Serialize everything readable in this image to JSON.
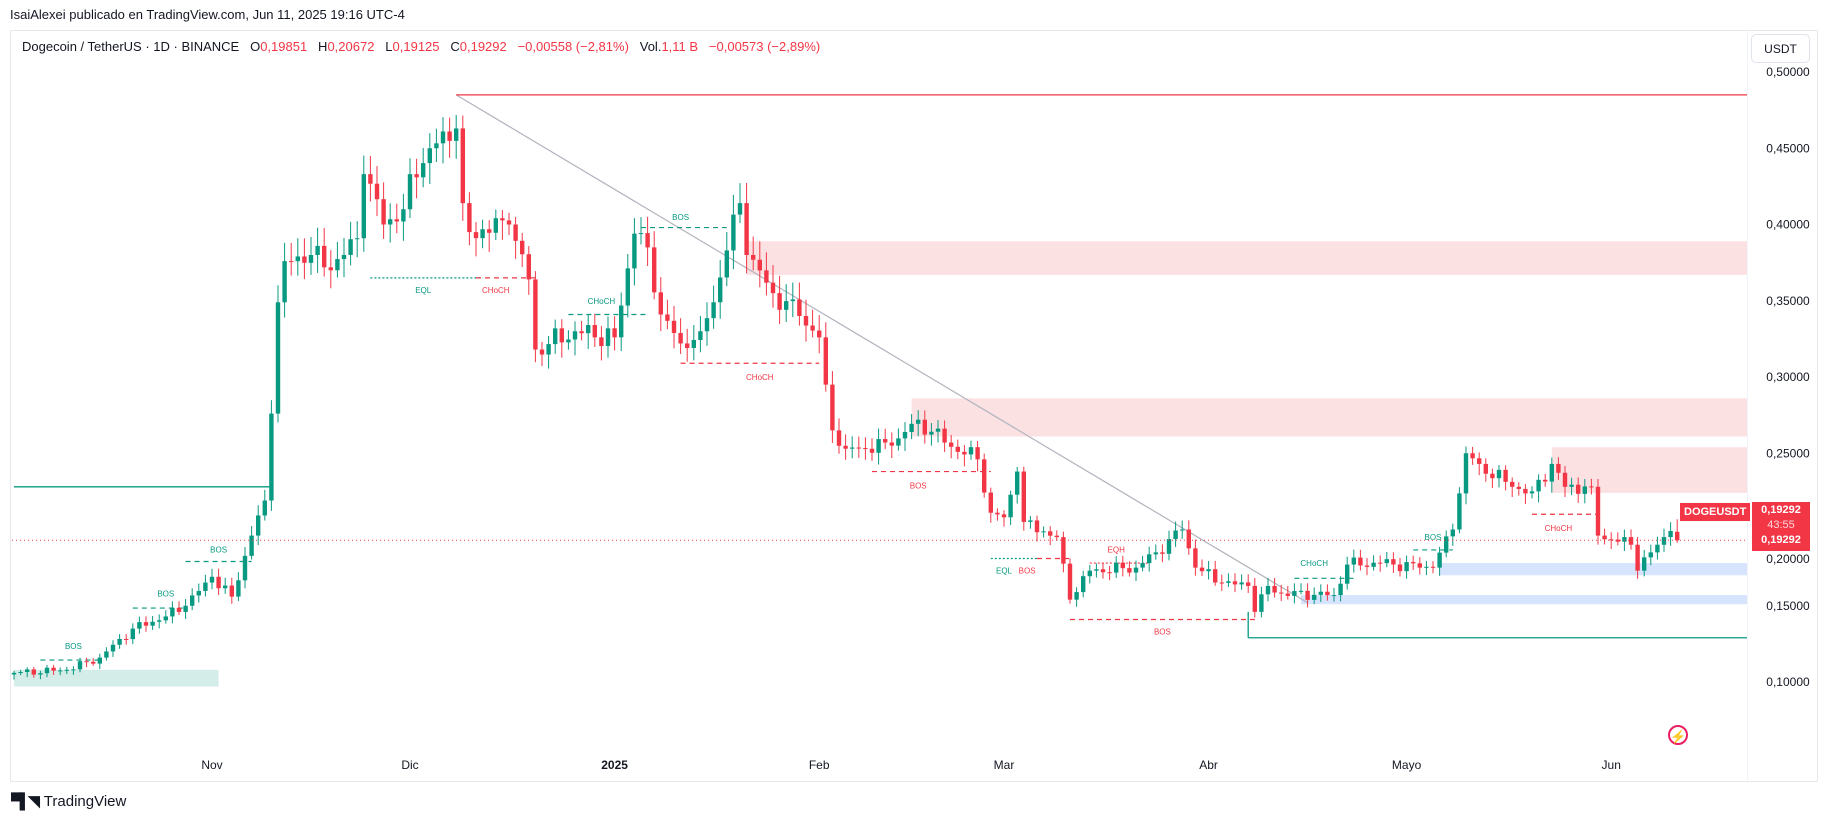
{
  "byline": "IsaiAlexei publicado en TradingView.com, Jun 11, 2025 19:16 UTC-4",
  "legend": {
    "symbol": "Dogecoin / TetherUS · 1D · BINANCE",
    "o_label": "O",
    "o": "0,19851",
    "h_label": "H",
    "h": "0,20672",
    "l_label": "L",
    "l": "0,19125",
    "c_label": "C",
    "c": "0,19292",
    "change": "−0,00558 (−2,81%)",
    "vol_label": "Vol.",
    "vol": "1,11 B",
    "vol_change": "−0,00573 (−2,89%)"
  },
  "currency_button": "USDT",
  "price_tag": {
    "symbol": "DOGEUSDT",
    "price": "0,19292",
    "countdown": "43:55",
    "price2": "0,19292"
  },
  "footer": {
    "logo": "TV",
    "brand": "TradingView"
  },
  "colors": {
    "up": "#089981",
    "down": "#f23645",
    "supply": "#fce1e3",
    "demand": "#d6e4fd",
    "green_zone": "#d5ede8"
  },
  "chart_data": {
    "type": "candlestick",
    "title": "Dogecoin / TetherUS · 1D · BINANCE",
    "start_date": "2024-10-02",
    "ylim": [
      0.06,
      0.51
    ],
    "y_ticks": [
      "0,10000",
      "0,15000",
      "0,20000",
      "0,25000",
      "0,30000",
      "0,35000",
      "0,40000",
      "0,45000",
      "0,50000"
    ],
    "y_tick_values": [
      0.1,
      0.15,
      0.2,
      0.25,
      0.3,
      0.35,
      0.4,
      0.45,
      0.5
    ],
    "x_ticks": [
      {
        "label": "Nov",
        "day": 30
      },
      {
        "label": "Dic",
        "day": 60
      },
      {
        "label": "2025",
        "day": 91
      },
      {
        "label": "Feb",
        "day": 122
      },
      {
        "label": "Mar",
        "day": 150
      },
      {
        "label": "Abr",
        "day": 181
      },
      {
        "label": "Mayo",
        "day": 211
      },
      {
        "label": "Jun",
        "day": 242
      }
    ],
    "close_keyframes": [
      [
        0,
        0.106
      ],
      [
        8,
        0.108
      ],
      [
        13,
        0.116
      ],
      [
        18,
        0.135
      ],
      [
        23,
        0.143
      ],
      [
        26,
        0.15
      ],
      [
        30,
        0.169
      ],
      [
        33,
        0.156
      ],
      [
        36,
        0.196
      ],
      [
        38,
        0.219
      ],
      [
        39,
        0.276
      ],
      [
        40,
        0.349
      ],
      [
        41,
        0.376
      ],
      [
        45,
        0.38
      ],
      [
        48,
        0.37
      ],
      [
        52,
        0.391
      ],
      [
        53,
        0.433
      ],
      [
        56,
        0.4
      ],
      [
        59,
        0.41
      ],
      [
        60,
        0.433
      ],
      [
        63,
        0.45
      ],
      [
        67,
        0.463
      ],
      [
        68,
        0.414
      ],
      [
        69,
        0.395
      ],
      [
        75,
        0.4
      ],
      [
        78,
        0.364
      ],
      [
        79,
        0.318
      ],
      [
        85,
        0.33
      ],
      [
        91,
        0.326
      ],
      [
        94,
        0.394
      ],
      [
        96,
        0.385
      ],
      [
        98,
        0.341
      ],
      [
        101,
        0.322
      ],
      [
        104,
        0.33
      ],
      [
        106,
        0.349
      ],
      [
        108,
        0.383
      ],
      [
        110,
        0.414
      ],
      [
        111,
        0.38
      ],
      [
        115,
        0.355
      ],
      [
        119,
        0.34
      ],
      [
        122,
        0.326
      ],
      [
        123,
        0.295
      ],
      [
        124,
        0.265
      ],
      [
        126,
        0.253
      ],
      [
        133,
        0.255
      ],
      [
        137,
        0.272
      ],
      [
        141,
        0.257
      ],
      [
        146,
        0.246
      ],
      [
        148,
        0.211
      ],
      [
        150,
        0.208
      ],
      [
        152,
        0.238
      ],
      [
        153,
        0.205
      ],
      [
        158,
        0.195
      ],
      [
        160,
        0.154
      ],
      [
        163,
        0.173
      ],
      [
        170,
        0.175
      ],
      [
        173,
        0.185
      ],
      [
        177,
        0.2
      ],
      [
        179,
        0.175
      ],
      [
        183,
        0.165
      ],
      [
        187,
        0.163
      ],
      [
        188,
        0.146
      ],
      [
        190,
        0.163
      ],
      [
        192,
        0.158
      ],
      [
        200,
        0.157
      ],
      [
        202,
        0.177
      ],
      [
        207,
        0.178
      ],
      [
        215,
        0.175
      ],
      [
        218,
        0.2
      ],
      [
        220,
        0.25
      ],
      [
        222,
        0.243
      ],
      [
        227,
        0.228
      ],
      [
        230,
        0.225
      ],
      [
        233,
        0.243
      ],
      [
        235,
        0.228
      ],
      [
        239,
        0.228
      ],
      [
        240,
        0.196
      ],
      [
        245,
        0.19
      ],
      [
        246,
        0.173
      ],
      [
        248,
        0.185
      ],
      [
        250,
        0.195
      ],
      [
        251,
        0.199
      ],
      [
        252,
        0.19292
      ]
    ],
    "last_candle": {
      "open": 0.19851,
      "high": 0.20672,
      "low": 0.19125,
      "close": 0.19292
    },
    "current_price": 0.19292,
    "zones": [
      {
        "kind": "demand-green",
        "from": 0,
        "to": 31,
        "lo": 0.097,
        "hi": 0.108
      },
      {
        "kind": "supply",
        "from": 111,
        "to": null,
        "lo": 0.367,
        "hi": 0.389
      },
      {
        "kind": "supply",
        "from": 136,
        "to": null,
        "lo": 0.261,
        "hi": 0.286
      },
      {
        "kind": "supply",
        "from": 233,
        "to": null,
        "lo": 0.224,
        "hi": 0.254
      },
      {
        "kind": "demand",
        "from": 195,
        "to": null,
        "lo": 0.151,
        "hi": 0.157
      },
      {
        "kind": "demand",
        "from": 216,
        "to": null,
        "lo": 0.17,
        "hi": 0.178
      }
    ],
    "levels": [
      {
        "color": "down",
        "from": 67,
        "to": null,
        "price": 0.485
      },
      {
        "color": "up",
        "from": 0,
        "to": 39,
        "price": 0.228,
        "drop_to": 0.222
      },
      {
        "color": "up",
        "from": 187,
        "to": null,
        "price": 0.129,
        "rise_to": 0.146
      }
    ],
    "trendline": {
      "from": [
        67,
        0.485
      ],
      "to": [
        196,
        0.152
      ]
    },
    "annotations": [
      {
        "text": "BOS",
        "color": "up",
        "style": "dashed",
        "from": 4,
        "to": 13,
        "price": 0.1144,
        "label_day": 9,
        "label_price": 0.1236
      },
      {
        "text": "BOS",
        "color": "up",
        "style": "dashed",
        "from": 18,
        "to": 26,
        "price": 0.1485,
        "label_day": 23,
        "label_price": 0.158
      },
      {
        "text": "BOS",
        "color": "up",
        "style": "dashed",
        "from": 26,
        "to": 36,
        "price": 0.179,
        "label_day": 31,
        "label_price": 0.187
      },
      {
        "text": "EQL",
        "color": "up",
        "style": "dotted",
        "from": 54,
        "to": 71,
        "price": 0.365,
        "label_day": 62,
        "label_price": 0.357
      },
      {
        "text": "CHoCH",
        "color": "down",
        "style": "dashed",
        "from": 70,
        "to": 79,
        "price": 0.365,
        "label_day": 73,
        "label_price": 0.357
      },
      {
        "text": "CHoCH",
        "color": "up",
        "style": "dashed",
        "from": 84,
        "to": 96,
        "price": 0.341,
        "label_day": 89,
        "label_price": 0.35
      },
      {
        "text": "BOS",
        "color": "up",
        "style": "dashed",
        "from": 95,
        "to": 108,
        "price": 0.398,
        "label_day": 101,
        "label_price": 0.405
      },
      {
        "text": "CHoCH",
        "color": "down",
        "style": "dashed",
        "from": 101,
        "to": 122,
        "price": 0.309,
        "label_day": 113,
        "label_price": 0.3
      },
      {
        "text": "BOS",
        "color": "down",
        "style": "dashed",
        "from": 130,
        "to": 148,
        "price": 0.238,
        "label_day": 137,
        "label_price": 0.229
      },
      {
        "text": "EQL",
        "color": "up",
        "style": "dotted",
        "from": 148,
        "to": 155,
        "price": 0.181,
        "label_day": 150,
        "label_price": 0.173
      },
      {
        "text": "BOS",
        "color": "down",
        "style": "dashed",
        "from": 155,
        "to": 160,
        "price": 0.181,
        "label_day": 153.5,
        "label_price": 0.173
      },
      {
        "text": "EQH",
        "color": "down",
        "style": "dotted",
        "from": 163,
        "to": 172,
        "price": 0.178,
        "label_day": 167,
        "label_price": 0.187
      },
      {
        "text": "BOS",
        "color": "down",
        "style": "dashed",
        "from": 160,
        "to": 188,
        "price": 0.141,
        "label_day": 174,
        "label_price": 0.133
      },
      {
        "text": "CHoCH",
        "color": "up",
        "style": "dashed",
        "from": 194,
        "to": 203,
        "price": 0.168,
        "label_day": 197,
        "label_price": 0.178
      },
      {
        "text": "BOS",
        "color": "up",
        "style": "dashed",
        "from": 212,
        "to": 218,
        "price": 0.1866,
        "label_day": 215,
        "label_price": 0.195
      },
      {
        "text": "CHoCH",
        "color": "down",
        "style": "dashed",
        "from": 230,
        "to": 240,
        "price": 0.21,
        "label_day": 234,
        "label_price": 0.201
      }
    ]
  }
}
